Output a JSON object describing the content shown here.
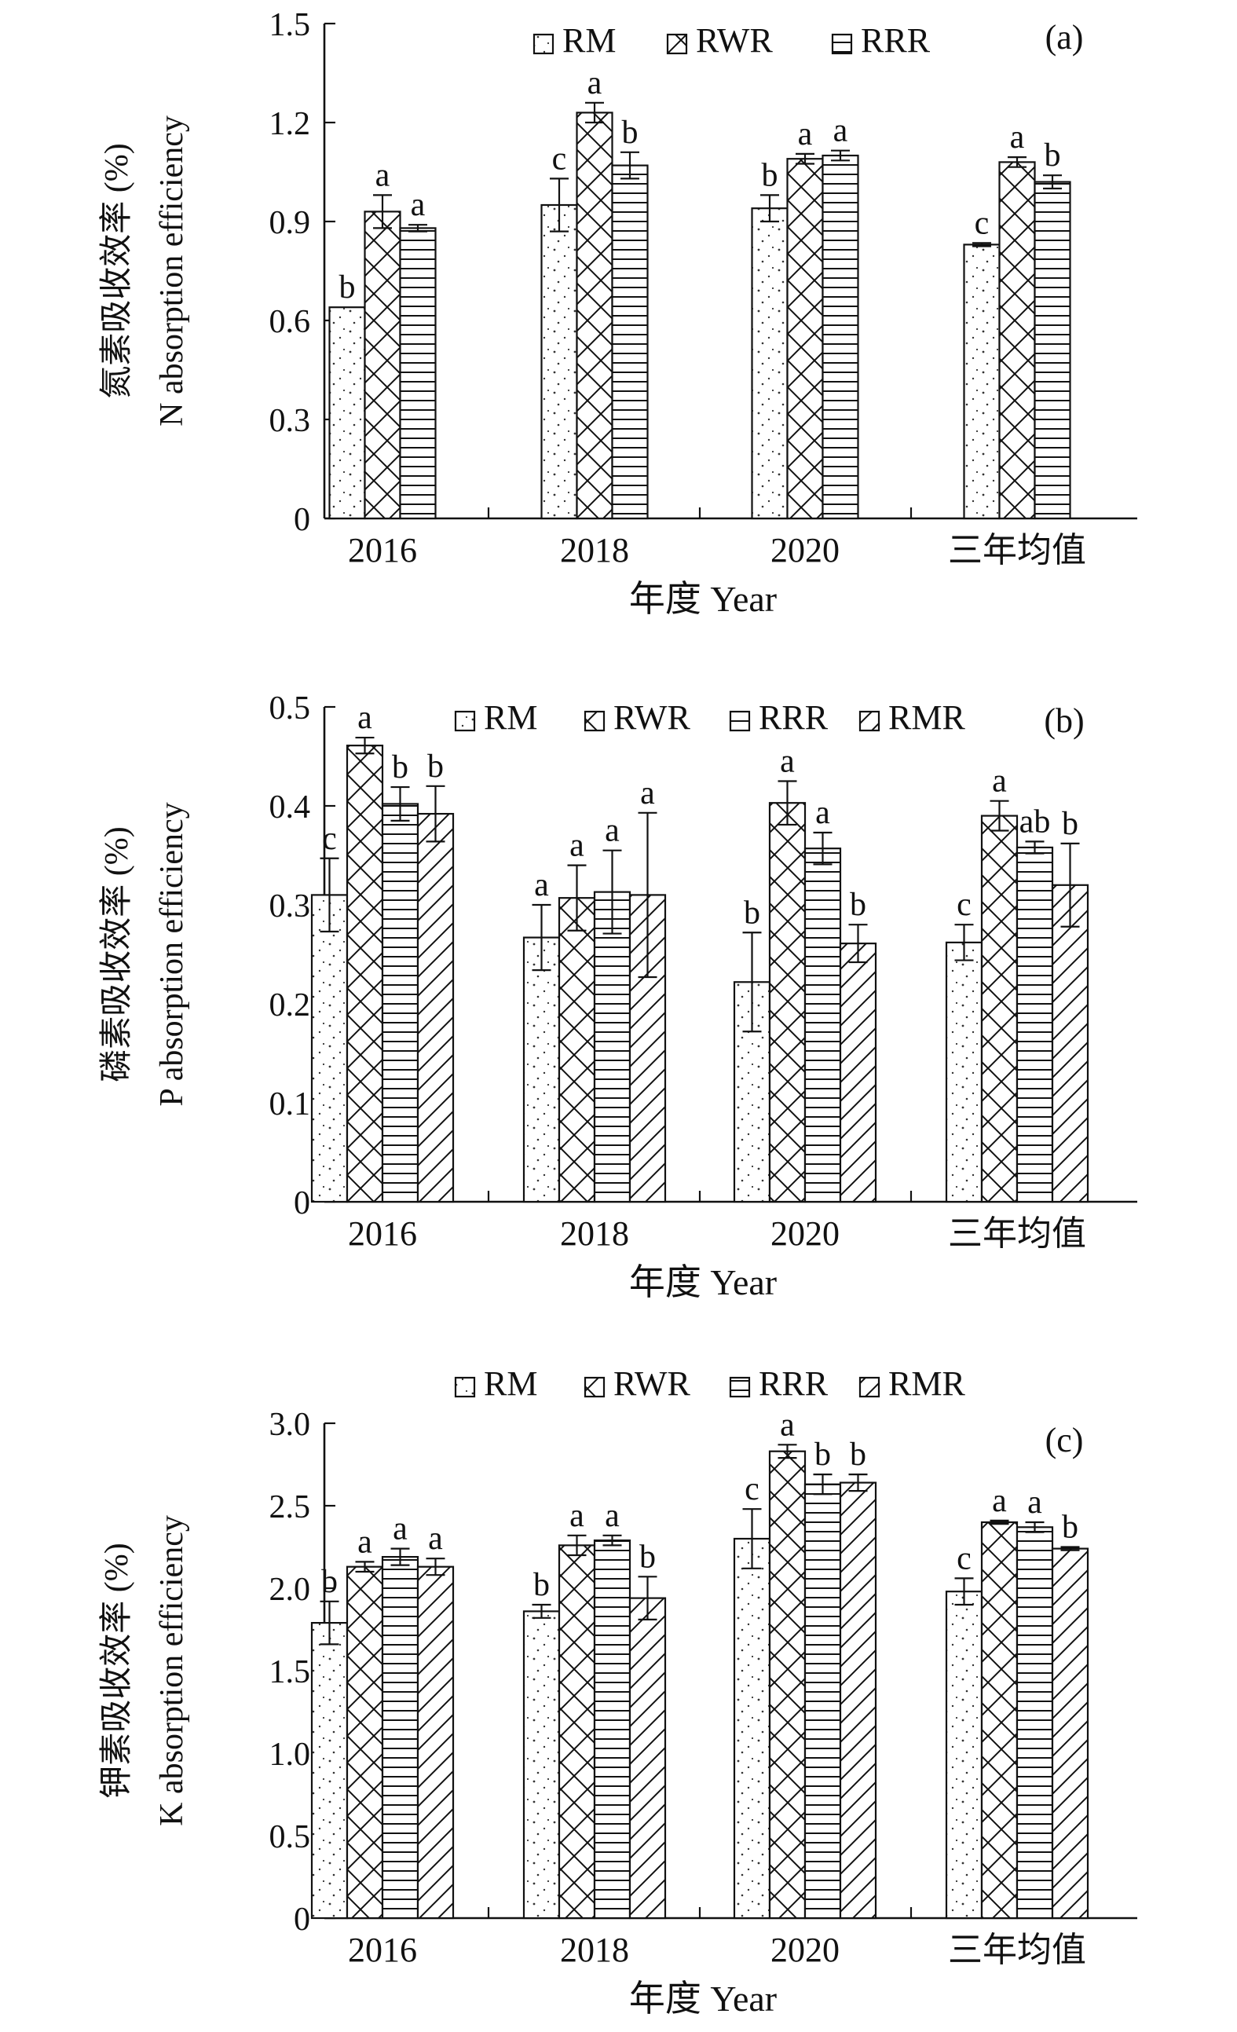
{
  "chart_data": [
    {
      "type": "bar",
      "panel_label": "(a)",
      "categories": [
        "2016",
        "2018",
        "2020",
        "三年均值"
      ],
      "xlabel": "年度 Year",
      "ylabel_cn": "氮素吸收效率 (%)",
      "ylabel_en": "N absorption efficiency",
      "ylim": [
        0,
        1.5
      ],
      "yticks": [
        "0",
        "0.3",
        "0.6",
        "0.9",
        "1.2",
        "1.5"
      ],
      "legend_position": "top",
      "series": [
        {
          "name": "RM",
          "pattern": "dots",
          "values": [
            0.64,
            0.95,
            0.94,
            0.83
          ],
          "errors": [
            0.0,
            0.08,
            0.04,
            0.005
          ],
          "letters": [
            "b",
            "c",
            "b",
            "c"
          ]
        },
        {
          "name": "RWR",
          "pattern": "cross",
          "values": [
            0.93,
            1.23,
            1.09,
            1.08
          ],
          "errors": [
            0.05,
            0.03,
            0.015,
            0.015
          ],
          "letters": [
            "a",
            "a",
            "a",
            "a"
          ]
        },
        {
          "name": "RRR",
          "pattern": "horizontal",
          "values": [
            0.88,
            1.07,
            1.1,
            1.02
          ],
          "errors": [
            0.01,
            0.04,
            0.015,
            0.02
          ],
          "letters": [
            "a",
            "b",
            "a",
            "b"
          ]
        }
      ]
    },
    {
      "type": "bar",
      "panel_label": "(b)",
      "categories": [
        "2016",
        "2018",
        "2020",
        "三年均值"
      ],
      "xlabel": "年度 Year",
      "ylabel_cn": "磷素吸收效率 (%)",
      "ylabel_en": "P absorption efficiency",
      "ylim": [
        0,
        0.5
      ],
      "yticks": [
        "0",
        "0.1",
        "0.2",
        "0.3",
        "0.4",
        "0.5"
      ],
      "legend_position": "top",
      "series": [
        {
          "name": "RM",
          "pattern": "dots",
          "values": [
            0.31,
            0.267,
            0.222,
            0.262
          ],
          "errors": [
            0.037,
            0.033,
            0.05,
            0.018
          ],
          "letters": [
            "c",
            "a",
            "b",
            "c"
          ]
        },
        {
          "name": "RWR",
          "pattern": "cross",
          "values": [
            0.461,
            0.307,
            0.403,
            0.39
          ],
          "errors": [
            0.008,
            0.033,
            0.022,
            0.015
          ],
          "letters": [
            "a",
            "a",
            "a",
            "a"
          ]
        },
        {
          "name": "RRR",
          "pattern": "horizontal",
          "values": [
            0.402,
            0.313,
            0.357,
            0.358
          ],
          "errors": [
            0.017,
            0.042,
            0.016,
            0.006
          ],
          "letters": [
            "b",
            "a",
            "a",
            "ab"
          ]
        },
        {
          "name": "RMR",
          "pattern": "diagonal",
          "values": [
            0.392,
            0.31,
            0.261,
            0.32
          ],
          "errors": [
            0.028,
            0.083,
            0.019,
            0.042
          ],
          "letters": [
            "b",
            "a",
            "b",
            "b"
          ]
        }
      ]
    },
    {
      "type": "bar",
      "panel_label": "(c)",
      "categories": [
        "2016",
        "2018",
        "2020",
        "三年均值"
      ],
      "xlabel": "年度 Year",
      "ylabel_cn": "钾素吸收效率 (%)",
      "ylabel_en": "K absorption efficiency",
      "ylim": [
        0,
        3.0
      ],
      "yticks": [
        "0",
        "0.5",
        "1.0",
        "1.5",
        "2.0",
        "2.5",
        "3.0"
      ],
      "legend_position": "top",
      "series": [
        {
          "name": "RM",
          "pattern": "dots",
          "values": [
            1.79,
            1.86,
            2.3,
            1.98
          ],
          "errors": [
            0.13,
            0.04,
            0.18,
            0.08
          ],
          "letters": [
            "b",
            "b",
            "c",
            "c"
          ]
        },
        {
          "name": "RWR",
          "pattern": "cross",
          "values": [
            2.13,
            2.26,
            2.83,
            2.4
          ],
          "errors": [
            0.03,
            0.06,
            0.04,
            0.01
          ],
          "letters": [
            "a",
            "a",
            "a",
            "a"
          ]
        },
        {
          "name": "RRR",
          "pattern": "horizontal",
          "values": [
            2.19,
            2.29,
            2.63,
            2.37
          ],
          "errors": [
            0.05,
            0.03,
            0.06,
            0.03
          ],
          "letters": [
            "a",
            "a",
            "b",
            "a"
          ]
        },
        {
          "name": "RMR",
          "pattern": "diagonal",
          "values": [
            2.13,
            1.94,
            2.64,
            2.24
          ],
          "errors": [
            0.05,
            0.13,
            0.05,
            0.01
          ],
          "letters": [
            "a",
            "b",
            "b",
            "b"
          ]
        }
      ]
    }
  ]
}
